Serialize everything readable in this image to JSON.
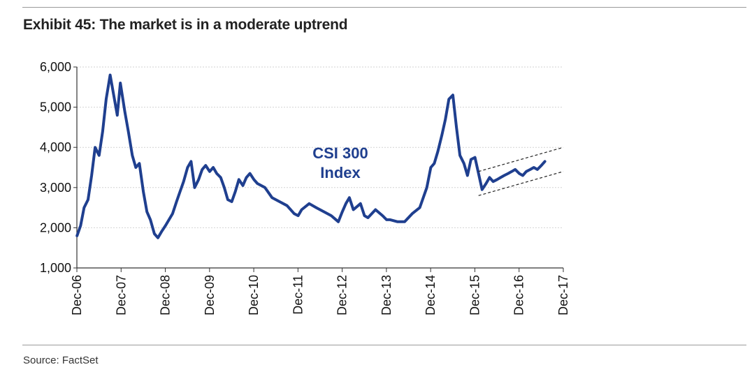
{
  "title": "Exhibit 45: The market is in a moderate uptrend",
  "source": "Source: FactSet",
  "colors": {
    "series": "#1f3f8f",
    "grid": "#d2d2d2",
    "axis": "#333333",
    "trend": "#222222"
  },
  "chart_data": {
    "type": "line",
    "title": "Exhibit 45: The market is in a moderate uptrend",
    "xlabel": "",
    "ylabel": "",
    "ylim": [
      1000,
      6000
    ],
    "yticks": [
      1000,
      2000,
      3000,
      4000,
      5000,
      6000
    ],
    "ytick_labels": [
      "1,000",
      "2,000",
      "3,000",
      "4,000",
      "5,000",
      "6,000"
    ],
    "xlim": [
      2006.917,
      2017.917
    ],
    "xtick_labels": [
      "Dec-06",
      "Dec-07",
      "Dec-08",
      "Dec-09",
      "Dec-10",
      "Dec-11",
      "Dec-12",
      "Dec-13",
      "Dec-14",
      "Dec-15",
      "Dec-16",
      "Dec-17"
    ],
    "grid": "horizontal",
    "annotation": [
      "CSI 300",
      "Index"
    ],
    "series": [
      {
        "name": "CSI 300 Index",
        "x": [
          2006.92,
          2007.0,
          2007.08,
          2007.17,
          2007.25,
          2007.33,
          2007.42,
          2007.5,
          2007.58,
          2007.67,
          2007.75,
          2007.83,
          2007.9,
          2008.0,
          2008.08,
          2008.17,
          2008.25,
          2008.33,
          2008.42,
          2008.5,
          2008.58,
          2008.67,
          2008.75,
          2008.83,
          2008.92,
          2009.0,
          2009.08,
          2009.17,
          2009.25,
          2009.33,
          2009.42,
          2009.5,
          2009.58,
          2009.67,
          2009.75,
          2009.83,
          2009.92,
          2010.0,
          2010.08,
          2010.17,
          2010.25,
          2010.33,
          2010.42,
          2010.5,
          2010.58,
          2010.67,
          2010.75,
          2010.83,
          2010.92,
          2011.0,
          2011.17,
          2011.33,
          2011.5,
          2011.67,
          2011.83,
          2011.92,
          2012.0,
          2012.17,
          2012.33,
          2012.5,
          2012.67,
          2012.83,
          2012.92,
          2013.0,
          2013.08,
          2013.17,
          2013.33,
          2013.42,
          2013.5,
          2013.67,
          2013.83,
          2013.92,
          2014.0,
          2014.17,
          2014.33,
          2014.5,
          2014.67,
          2014.83,
          2014.92,
          2015.0,
          2015.08,
          2015.17,
          2015.25,
          2015.33,
          2015.42,
          2015.5,
          2015.58,
          2015.67,
          2015.75,
          2015.83,
          2015.92,
          2016.0,
          2016.08,
          2016.17,
          2016.25,
          2016.33,
          2016.42,
          2016.5,
          2016.58,
          2016.67,
          2016.75,
          2016.83,
          2016.92,
          2017.0,
          2017.08,
          2017.17,
          2017.25,
          2017.33,
          2017.42,
          2017.5
        ],
        "values": [
          1800,
          2050,
          2500,
          2700,
          3300,
          4000,
          3800,
          4400,
          5200,
          5800,
          5300,
          4800,
          5600,
          4900,
          4400,
          3800,
          3500,
          3600,
          2900,
          2400,
          2200,
          1850,
          1750,
          1900,
          2050,
          2200,
          2350,
          2650,
          2900,
          3150,
          3500,
          3650,
          3000,
          3200,
          3450,
          3550,
          3400,
          3500,
          3350,
          3250,
          3000,
          2700,
          2650,
          2900,
          3200,
          3050,
          3250,
          3350,
          3200,
          3100,
          3000,
          2750,
          2650,
          2550,
          2350,
          2300,
          2450,
          2600,
          2500,
          2400,
          2300,
          2150,
          2400,
          2600,
          2750,
          2450,
          2600,
          2300,
          2250,
          2450,
          2300,
          2200,
          2200,
          2150,
          2150,
          2350,
          2500,
          3000,
          3500,
          3600,
          3900,
          4300,
          4700,
          5200,
          5300,
          4500,
          3800,
          3600,
          3300,
          3700,
          3750,
          3350,
          2950,
          3100,
          3250,
          3150,
          3200,
          3250,
          3300,
          3350,
          3400,
          3450,
          3350,
          3300,
          3400,
          3450,
          3500,
          3450,
          3550,
          3650
        ]
      }
    ],
    "trend_channel": {
      "upper": {
        "x": [
          2016.0,
          2017.917
        ],
        "y": [
          3400,
          4000
        ]
      },
      "lower": {
        "x": [
          2016.0,
          2017.917
        ],
        "y": [
          2800,
          3400
        ]
      }
    }
  }
}
